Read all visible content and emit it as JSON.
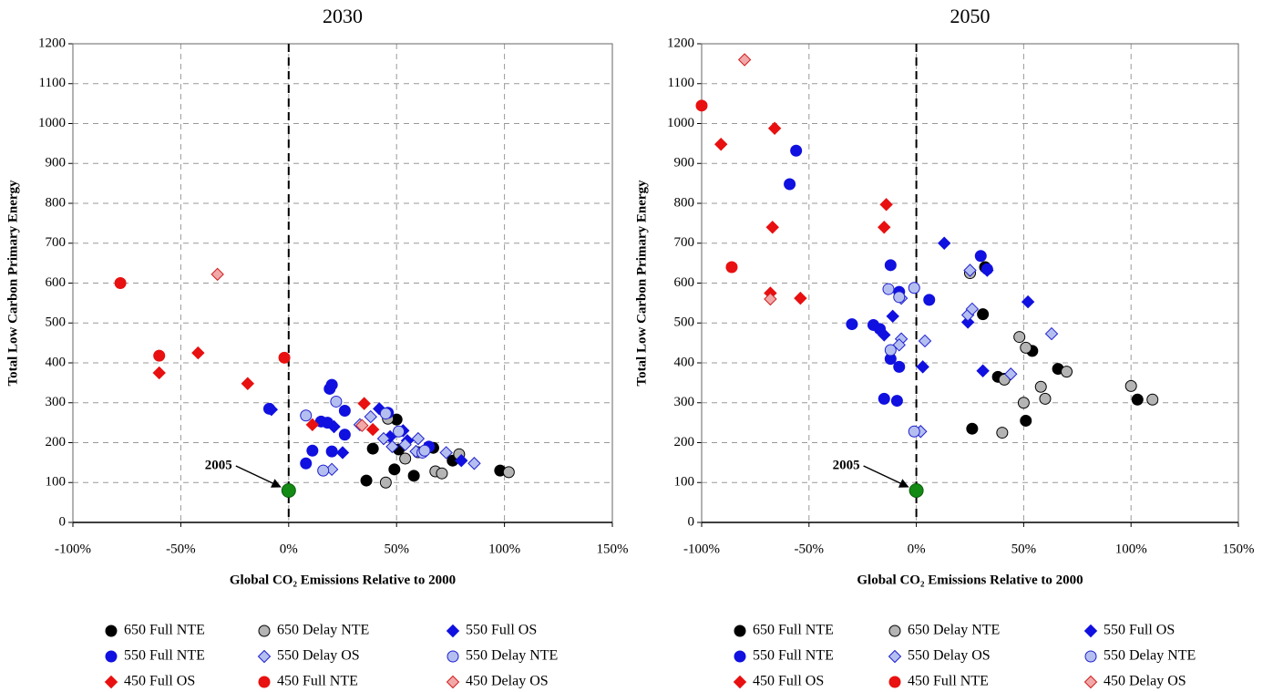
{
  "chart_data": [
    {
      "type": "scatter",
      "title": "2030",
      "xlabel": "Global CO₂ Emissions Relative to 2000",
      "ylabel": "Total Low Carbon Primary Energy",
      "xlim": [
        -100,
        150
      ],
      "ylim": [
        0,
        1200
      ],
      "xticks": [
        {
          "value": -100,
          "label": "-100%"
        },
        {
          "value": -50,
          "label": "-50%"
        },
        {
          "value": 0,
          "label": "0%"
        },
        {
          "value": 50,
          "label": "50%"
        },
        {
          "value": 100,
          "label": "100%"
        },
        {
          "value": 150,
          "label": "150%"
        }
      ],
      "yticks": [
        0,
        100,
        200,
        300,
        400,
        500,
        600,
        700,
        800,
        900,
        1000,
        1100,
        1200
      ],
      "grid": true,
      "vline": 0,
      "highlight": {
        "label": "2005",
        "x": 0,
        "y": 80,
        "color": "#138a13"
      },
      "series": [
        {
          "name": "650 Full NTE",
          "marker": "circle",
          "color": "#000000",
          "edge": "#000000",
          "x": [
            36,
            39,
            49,
            50,
            51,
            58,
            67,
            76,
            98
          ],
          "y": [
            105,
            185,
            133,
            258,
            183,
            117,
            187,
            155,
            130
          ]
        },
        {
          "name": "650 Delay NTE",
          "marker": "circle",
          "color": "#b4b4b4",
          "edge": "#000000",
          "x": [
            45,
            54,
            60,
            68,
            71,
            79,
            102,
            46
          ],
          "y": [
            100,
            160,
            176,
            128,
            123,
            171,
            126,
            260
          ]
        },
        {
          "name": "550 Full OS",
          "marker": "diamond",
          "color": "#1010e0",
          "edge": "#1010e0",
          "x": [
            -8,
            21,
            25,
            42,
            47,
            53,
            55,
            80
          ],
          "y": [
            283,
            240,
            175,
            285,
            215,
            230,
            205,
            155
          ]
        },
        {
          "name": "550 Full NTE",
          "marker": "circle",
          "color": "#1010e0",
          "edge": "#1010e0",
          "x": [
            -9,
            8,
            11,
            15,
            19,
            20,
            20,
            26,
            26,
            46,
            65,
            18
          ],
          "y": [
            285,
            148,
            180,
            253,
            335,
            345,
            178,
            280,
            220,
            275,
            190,
            250
          ]
        },
        {
          "name": "550 Delay OS",
          "marker": "diamond",
          "color": "#b4bff0",
          "edge": "#2020d0",
          "x": [
            38,
            44,
            48,
            54,
            59,
            60,
            73,
            86,
            20,
            33
          ],
          "y": [
            265,
            210,
            190,
            195,
            178,
            210,
            175,
            148,
            133,
            245
          ]
        },
        {
          "name": "550 Delay NTE",
          "marker": "circle",
          "color": "#b4bff0",
          "edge": "#2020d0",
          "x": [
            8,
            16,
            22,
            45,
            51,
            62,
            63
          ],
          "y": [
            268,
            130,
            303,
            273,
            228,
            175,
            180
          ]
        },
        {
          "name": "450 Full OS",
          "marker": "diamond",
          "color": "#e81010",
          "edge": "#e81010",
          "x": [
            -60,
            -42,
            -19,
            11,
            35,
            39
          ],
          "y": [
            375,
            425,
            348,
            245,
            298,
            233
          ]
        },
        {
          "name": "450 Full NTE",
          "marker": "circle",
          "color": "#e81010",
          "edge": "#e81010",
          "x": [
            -78,
            -60,
            -2
          ],
          "y": [
            600,
            418,
            413
          ]
        },
        {
          "name": "450 Delay OS",
          "marker": "diamond",
          "color": "#f0a8a8",
          "edge": "#d02020",
          "x": [
            -33,
            34
          ],
          "y": [
            622,
            243
          ]
        }
      ]
    },
    {
      "type": "scatter",
      "title": "2050",
      "xlabel": "Global CO₂ Emissions Relative to 2000",
      "ylabel": "Total Low Carbon Primary Energy",
      "xlim": [
        -100,
        150
      ],
      "ylim": [
        0,
        1200
      ],
      "xticks": [
        {
          "value": -100,
          "label": "-100%"
        },
        {
          "value": -50,
          "label": "-50%"
        },
        {
          "value": 0,
          "label": "0%"
        },
        {
          "value": 50,
          "label": "50%"
        },
        {
          "value": 100,
          "label": "100%"
        },
        {
          "value": 150,
          "label": "150%"
        }
      ],
      "yticks": [
        0,
        100,
        200,
        300,
        400,
        500,
        600,
        700,
        800,
        900,
        1000,
        1100,
        1200
      ],
      "grid": true,
      "vline": 0,
      "highlight": {
        "label": "2005",
        "x": 0,
        "y": 80,
        "color": "#138a13"
      },
      "series": [
        {
          "name": "650 Full NTE",
          "marker": "circle",
          "color": "#000000",
          "edge": "#000000",
          "x": [
            26,
            31,
            32,
            38,
            51,
            54,
            66,
            103,
            41
          ],
          "y": [
            235,
            522,
            640,
            365,
            255,
            430,
            385,
            308,
            360
          ]
        },
        {
          "name": "650 Delay NTE",
          "marker": "circle",
          "color": "#b4b4b4",
          "edge": "#000000",
          "x": [
            25,
            48,
            50,
            51,
            40,
            41,
            58,
            60,
            70,
            100,
            110
          ],
          "y": [
            625,
            465,
            300,
            438,
            225,
            358,
            340,
            310,
            378,
            342,
            308
          ]
        },
        {
          "name": "550 Full OS",
          "marker": "diamond",
          "color": "#1010e0",
          "edge": "#1010e0",
          "x": [
            -15,
            -11,
            3,
            13,
            24,
            31,
            33,
            52
          ],
          "y": [
            470,
            517,
            390,
            700,
            502,
            380,
            632,
            553
          ]
        },
        {
          "name": "550 Full NTE",
          "marker": "circle",
          "color": "#1010e0",
          "edge": "#1010e0",
          "x": [
            -59,
            -56,
            -30,
            -20,
            -17,
            -15,
            -12,
            -12,
            -9,
            -8,
            -8,
            6,
            30,
            33
          ],
          "y": [
            848,
            932,
            497,
            495,
            485,
            310,
            645,
            410,
            305,
            390,
            578,
            558,
            668,
            635
          ]
        },
        {
          "name": "550 Delay OS",
          "marker": "diamond",
          "color": "#b4bff0",
          "edge": "#2020d0",
          "x": [
            -7,
            -7,
            -8,
            2,
            4,
            24,
            25,
            26,
            44,
            63
          ],
          "y": [
            562,
            460,
            445,
            228,
            455,
            520,
            632,
            535,
            372,
            473
          ]
        },
        {
          "name": "550 Delay NTE",
          "marker": "circle",
          "color": "#b4bff0",
          "edge": "#2020d0",
          "x": [
            -13,
            -12,
            -1,
            -1,
            -8
          ],
          "y": [
            585,
            432,
            588,
            228,
            565
          ]
        },
        {
          "name": "450 Full OS",
          "marker": "diamond",
          "color": "#e81010",
          "edge": "#e81010",
          "x": [
            -91,
            -66,
            -67,
            -68,
            -54,
            -14,
            -15
          ],
          "y": [
            948,
            988,
            740,
            575,
            562,
            797,
            740
          ]
        },
        {
          "name": "450 Full NTE",
          "marker": "circle",
          "color": "#e81010",
          "edge": "#e81010",
          "x": [
            -100,
            -86
          ],
          "y": [
            1045,
            640
          ]
        },
        {
          "name": "450 Delay OS",
          "marker": "diamond",
          "color": "#f0a8a8",
          "edge": "#d02020",
          "x": [
            -80,
            -68
          ],
          "y": [
            1160,
            560
          ]
        }
      ]
    }
  ]
}
